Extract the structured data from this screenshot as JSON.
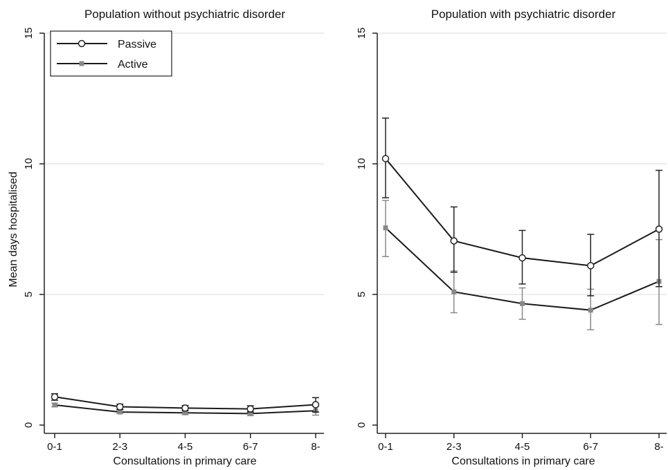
{
  "chart_data": [
    {
      "type": "line",
      "title": "Population without psychiatric disorder",
      "xlabel": "Consultations in primary care",
      "ylabel": "Mean days hospitalised",
      "categories": [
        "0-1",
        "2-3",
        "4-5",
        "6-7",
        "8-"
      ],
      "ylim": [
        0,
        15
      ],
      "yticks": [
        0,
        5,
        10,
        15
      ],
      "grid": true,
      "legend": "top-left",
      "series": [
        {
          "name": "Passive",
          "marker": "hollow-circle",
          "color": "#222222",
          "values": [
            1.08,
            0.7,
            0.65,
            0.62,
            0.78
          ],
          "ci_low": [
            0.95,
            0.6,
            0.55,
            0.5,
            0.5
          ],
          "ci_high": [
            1.2,
            0.8,
            0.75,
            0.74,
            1.05
          ]
        },
        {
          "name": "Active",
          "marker": "filled-square",
          "color": "#888888",
          "values": [
            0.77,
            0.5,
            0.47,
            0.44,
            0.55
          ],
          "ci_low": [
            0.7,
            0.44,
            0.4,
            0.36,
            0.38
          ],
          "ci_high": [
            0.84,
            0.57,
            0.54,
            0.52,
            0.72
          ]
        }
      ]
    },
    {
      "type": "line",
      "title": "Population with psychiatric disorder",
      "xlabel": "Consultations in primary care",
      "ylabel": "",
      "categories": [
        "0-1",
        "2-3",
        "4-5",
        "6-7",
        "8-"
      ],
      "ylim": [
        0,
        15
      ],
      "yticks": [
        0,
        5,
        10,
        15
      ],
      "grid": true,
      "legend": "",
      "series": [
        {
          "name": "Passive",
          "marker": "hollow-circle",
          "color": "#222222",
          "values": [
            10.2,
            7.05,
            6.4,
            6.1,
            7.5
          ],
          "ci_low": [
            8.7,
            5.85,
            5.4,
            4.95,
            5.3
          ],
          "ci_high": [
            11.75,
            8.35,
            7.45,
            7.3,
            9.75
          ]
        },
        {
          "name": "Active",
          "marker": "filled-square",
          "color": "#888888",
          "values": [
            7.55,
            5.1,
            4.65,
            4.4,
            5.5
          ],
          "ci_low": [
            6.45,
            4.3,
            4.05,
            3.65,
            3.85
          ],
          "ci_high": [
            8.6,
            5.9,
            5.25,
            5.2,
            7.1
          ]
        }
      ]
    }
  ]
}
